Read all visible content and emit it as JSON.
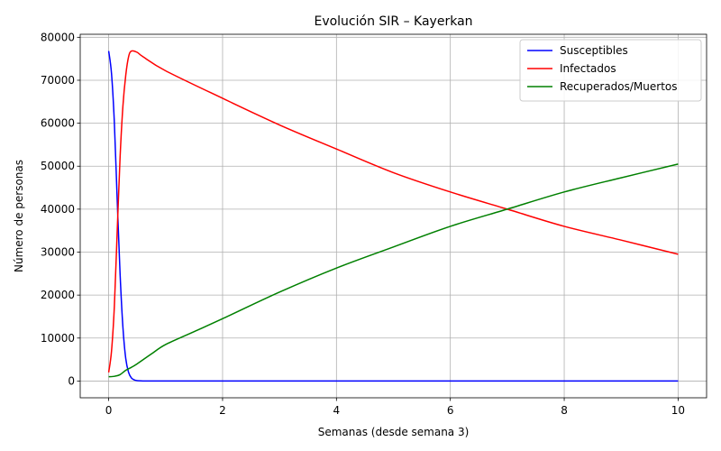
{
  "chart_data": {
    "type": "line",
    "title": "Evolución SIR – Kayerkan",
    "xlabel": "Semanas (desde semana 3)",
    "ylabel": "Número de personas",
    "xlim": [
      -0.5,
      10.5
    ],
    "ylim": [
      -3900,
      80700
    ],
    "xticks": [
      0,
      2,
      4,
      6,
      8,
      10
    ],
    "yticks": [
      0,
      10000,
      20000,
      30000,
      40000,
      50000,
      60000,
      70000,
      80000
    ],
    "grid": true,
    "legend_position": "upper right",
    "series": [
      {
        "name": "Susceptibles",
        "color": "#0000ff",
        "points": [
          [
            0,
            76800
          ],
          [
            0.05,
            71500
          ],
          [
            0.1,
            60000
          ],
          [
            0.15,
            42000
          ],
          [
            0.2,
            25000
          ],
          [
            0.25,
            12500
          ],
          [
            0.3,
            5200
          ],
          [
            0.35,
            2000
          ],
          [
            0.4,
            700
          ],
          [
            0.45,
            250
          ],
          [
            0.5,
            80
          ],
          [
            0.6,
            20
          ],
          [
            0.8,
            5
          ],
          [
            1,
            0
          ],
          [
            2,
            0
          ],
          [
            4,
            0
          ],
          [
            6,
            0
          ],
          [
            8,
            0
          ],
          [
            10,
            0
          ]
        ]
      },
      {
        "name": "Infectados",
        "color": "#ff0000",
        "points": [
          [
            0,
            2000
          ],
          [
            0.05,
            7000
          ],
          [
            0.1,
            17500
          ],
          [
            0.15,
            35000
          ],
          [
            0.2,
            52000
          ],
          [
            0.25,
            64000
          ],
          [
            0.3,
            71200
          ],
          [
            0.35,
            75500
          ],
          [
            0.4,
            76800
          ],
          [
            0.5,
            76500
          ],
          [
            0.6,
            75500
          ],
          [
            1,
            72200
          ],
          [
            2,
            65800
          ],
          [
            3,
            59600
          ],
          [
            4,
            54000
          ],
          [
            5,
            48500
          ],
          [
            6,
            44000
          ],
          [
            7,
            40000
          ],
          [
            8,
            36000
          ],
          [
            9,
            32800
          ],
          [
            10,
            29500
          ]
        ]
      },
      {
        "name": "Recuperados/Muertos",
        "color": "#008000",
        "points": [
          [
            0,
            1000
          ],
          [
            0.1,
            1100
          ],
          [
            0.2,
            1500
          ],
          [
            0.3,
            2500
          ],
          [
            0.4,
            3200
          ],
          [
            0.5,
            4000
          ],
          [
            0.75,
            6300
          ],
          [
            1,
            8500
          ],
          [
            1.5,
            11500
          ],
          [
            2,
            14500
          ],
          [
            3,
            20700
          ],
          [
            4,
            26300
          ],
          [
            5,
            31200
          ],
          [
            6,
            36000
          ],
          [
            7,
            40000
          ],
          [
            8,
            44000
          ],
          [
            9,
            47300
          ],
          [
            10,
            50500
          ]
        ]
      }
    ]
  }
}
